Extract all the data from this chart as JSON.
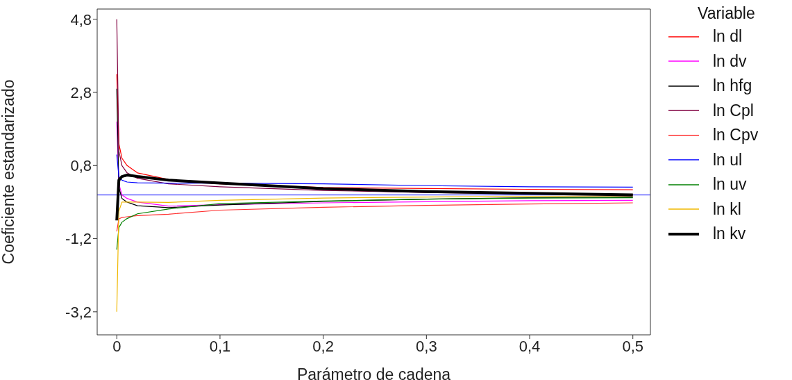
{
  "chart_data": {
    "type": "line",
    "xlabel": "Parámetro de cadena",
    "ylabel": "Coeficiente estandarizado",
    "legend_title": "Variable",
    "legend": "right",
    "grid": false,
    "marker": "none",
    "line_style": "solid",
    "x": [
      0,
      0.002,
      0.005,
      0.01,
      0.02,
      0.05,
      0.1,
      0.2,
      0.3,
      0.4,
      0.5
    ],
    "xlim": [
      -0.019,
      0.517
    ],
    "xticks": [
      0,
      {
        "value": 0.1,
        "label": "0,1"
      },
      {
        "value": 0.2,
        "label": "0,2"
      },
      {
        "value": 0.3,
        "label": "0,3"
      },
      {
        "value": 0.4,
        "label": "0,4"
      },
      {
        "value": 0.5,
        "label": "0,5"
      }
    ],
    "ylim": [
      -3.83,
      5.08
    ],
    "yticks": [
      {
        "value": -3.2,
        "label": "-3,2"
      },
      {
        "value": -1.2,
        "label": "-1,2"
      },
      {
        "value": 0.8,
        "label": "0,8"
      },
      {
        "value": 2.8,
        "label": "2,8"
      },
      {
        "value": 4.8,
        "label": "4,8"
      }
    ],
    "ref_lines": [
      {
        "axis": "y",
        "value": 0,
        "color": "#6666ff"
      }
    ],
    "series": [
      {
        "name": "ln dl",
        "color": "#ff0000",
        "values": [
          3.3,
          1.4,
          1.0,
          0.8,
          0.6,
          0.42,
          0.3,
          0.2,
          0.17,
          0.15,
          0.14
        ]
      },
      {
        "name": "ln dv",
        "color": "#ff00ff",
        "values": [
          2.0,
          0.3,
          0.0,
          -0.1,
          -0.2,
          -0.31,
          -0.27,
          -0.22,
          -0.19,
          -0.16,
          -0.15
        ]
      },
      {
        "name": "ln hfg",
        "color": "#000000",
        "values": [
          2.9,
          0.2,
          -0.1,
          -0.2,
          -0.3,
          -0.35,
          -0.28,
          -0.18,
          -0.12,
          -0.08,
          -0.06
        ]
      },
      {
        "name": "ln Cpl",
        "color": "#800040",
        "values": [
          4.8,
          1.2,
          0.8,
          0.6,
          0.45,
          0.3,
          0.22,
          0.12,
          0.06,
          0.03,
          0.0
        ]
      },
      {
        "name": "ln Cpv",
        "color": "#ff3030",
        "values": [
          -1.0,
          -0.66,
          -0.62,
          -0.6,
          -0.57,
          -0.53,
          -0.42,
          -0.34,
          -0.29,
          -0.25,
          -0.22
        ]
      },
      {
        "name": "ln ul",
        "color": "#0000ff",
        "values": [
          1.1,
          0.5,
          0.4,
          0.35,
          0.33,
          0.32,
          0.32,
          0.3,
          0.25,
          0.22,
          0.21
        ]
      },
      {
        "name": "ln uv",
        "color": "#008000",
        "values": [
          -1.5,
          -0.9,
          -0.75,
          -0.65,
          -0.52,
          -0.39,
          -0.24,
          -0.17,
          -0.12,
          -0.09,
          -0.08
        ]
      },
      {
        "name": "ln kl",
        "color": "#f0b800",
        "values": [
          -3.2,
          -0.45,
          -0.2,
          -0.2,
          -0.2,
          -0.21,
          -0.15,
          -0.09,
          -0.06,
          -0.04,
          -0.03
        ]
      },
      {
        "name": "ln kv",
        "color": "#000000",
        "values": [
          -0.7,
          0.4,
          0.5,
          0.54,
          0.5,
          0.4,
          0.32,
          0.17,
          0.09,
          0.04,
          0.0
        ]
      }
    ]
  }
}
